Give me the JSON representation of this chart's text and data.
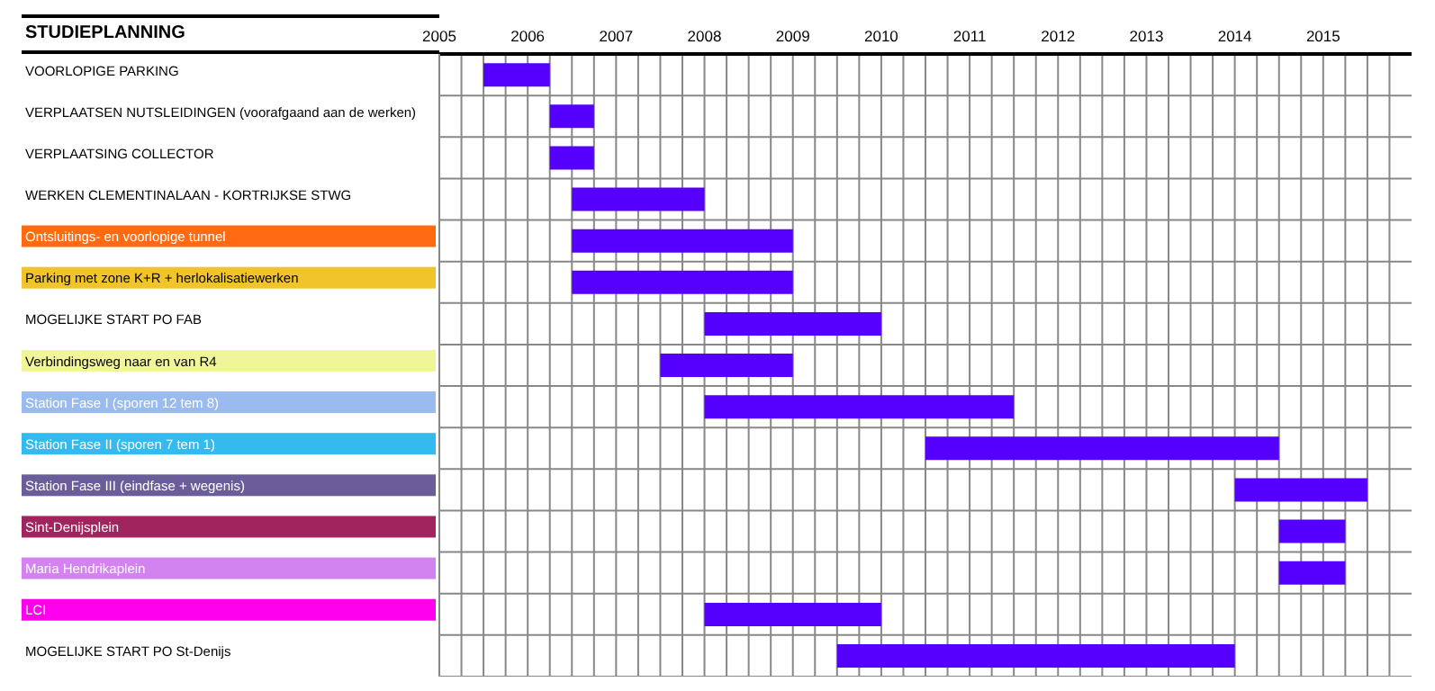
{
  "chart_data": {
    "type": "bar",
    "orientation": "horizontal",
    "title": "STUDIEPLANNING",
    "categories": [
      "VOORLOPIGE PARKING",
      "VERPLAATSEN NUTSLEIDINGEN (voorafgaand aan de werken)",
      "VERPLAATSING COLLECTOR",
      "WERKEN CLEMENTINALAAN - KORTRIJKSE STWG",
      "Ontsluitings- en voorlopige tunnel",
      "Parking  met zone K+R + herlokalisatiewerken",
      "MOGELIJKE START PO FAB",
      "Verbindingsweg naar en van R4",
      "Station Fase I (sporen 12 tem 8)",
      "Station Fase II (sporen 7 tem 1)",
      "Station Fase III (eindfase + wegenis)",
      "Sint-Denijsplein",
      "Maria Hendrikaplein",
      "LCI",
      "MOGELIJKE START PO  St-Denijs"
    ],
    "base": [
      2005.5,
      2006.25,
      2006.25,
      2006.5,
      2006.5,
      2006.5,
      2008,
      2007.5,
      2008,
      2010.5,
      2014,
      2014.5,
      2014.5,
      2008,
      2009.5
    ],
    "values": [
      0.75,
      0.5,
      0.5,
      1.5,
      2.5,
      2.5,
      2,
      1.5,
      3.5,
      4,
      1.5,
      0.75,
      0.75,
      2,
      4.5
    ],
    "color": "#5500ff",
    "xlim": [
      2005,
      2016
    ],
    "xticks": [
      2005,
      {
        "value": 2005.25,
        "label": null
      },
      {
        "value": 2005.5,
        "label": null
      },
      {
        "value": 2005.75,
        "label": null
      },
      2006,
      {
        "value": 2006.25,
        "label": null
      },
      {
        "value": 2006.5,
        "label": null
      },
      {
        "value": 2006.75,
        "label": null
      },
      2007,
      {
        "value": 2007.25,
        "label": null
      },
      {
        "value": 2007.5,
        "label": null
      },
      {
        "value": 2007.75,
        "label": null
      },
      2008,
      {
        "value": 2008.25,
        "label": null
      },
      {
        "value": 2008.5,
        "label": null
      },
      {
        "value": 2008.75,
        "label": null
      },
      2009,
      {
        "value": 2009.25,
        "label": null
      },
      {
        "value": 2009.5,
        "label": null
      },
      {
        "value": 2009.75,
        "label": null
      },
      2010,
      {
        "value": 2010.25,
        "label": null
      },
      {
        "value": 2010.5,
        "label": null
      },
      {
        "value": 2010.75,
        "label": null
      },
      2011,
      {
        "value": 2011.25,
        "label": null
      },
      {
        "value": 2011.5,
        "label": null
      },
      {
        "value": 2011.75,
        "label": null
      },
      2012,
      {
        "value": 2012.25,
        "label": null
      },
      {
        "value": 2012.5,
        "label": null
      },
      {
        "value": 2012.75,
        "label": null
      },
      2013,
      {
        "value": 2013.25,
        "label": null
      },
      {
        "value": 2013.5,
        "label": null
      },
      {
        "value": 2013.75,
        "label": null
      },
      2014,
      {
        "value": 2014.25,
        "label": null
      },
      {
        "value": 2014.5,
        "label": null
      },
      {
        "value": 2014.75,
        "label": null
      },
      2015,
      {
        "value": 2015.25,
        "label": null
      },
      {
        "value": 2015.5,
        "label": null
      },
      {
        "value": 2015.75,
        "label": null
      }
    ],
    "grid": true
  }
}
